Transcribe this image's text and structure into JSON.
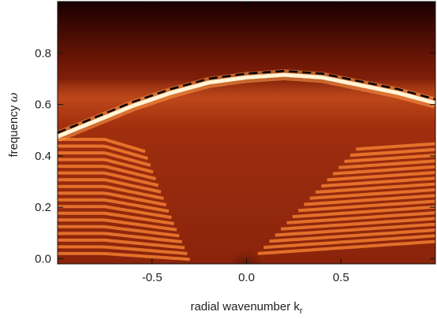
{
  "chart_data": {
    "type": "heatmap",
    "title": "",
    "xlabel": "radial wavenumber k",
    "xlabel_subscript": "r",
    "ylabel": "frequency",
    "ylabel_symbol": "ω",
    "xlim": [
      -1.0,
      1.0
    ],
    "ylim": [
      -0.02,
      1.0
    ],
    "x_ticks": [
      -0.5,
      0.0,
      0.5
    ],
    "x_tick_labels": [
      "-0.5",
      "0.0",
      "0.5"
    ],
    "y_ticks": [
      0.0,
      0.2,
      0.4,
      0.6,
      0.8
    ],
    "y_tick_labels": [
      "0.0",
      "0.2",
      "0.4",
      "0.6",
      "0.8"
    ],
    "grid": false,
    "colormap": "hot",
    "colors": {
      "dark": "#1a0000",
      "mid": "#b53b16",
      "bright": "#ff8a35",
      "peak": "#fff4d6"
    },
    "series": [
      {
        "style": "dashed",
        "color": "#000000",
        "x": [
          -1.0,
          -0.8,
          -0.6,
          -0.4,
          -0.2,
          0.0,
          0.2,
          0.4,
          0.6,
          0.8,
          1.0
        ],
        "y": [
          0.49,
          0.55,
          0.61,
          0.66,
          0.7,
          0.72,
          0.73,
          0.72,
          0.69,
          0.66,
          0.62
        ]
      }
    ]
  }
}
